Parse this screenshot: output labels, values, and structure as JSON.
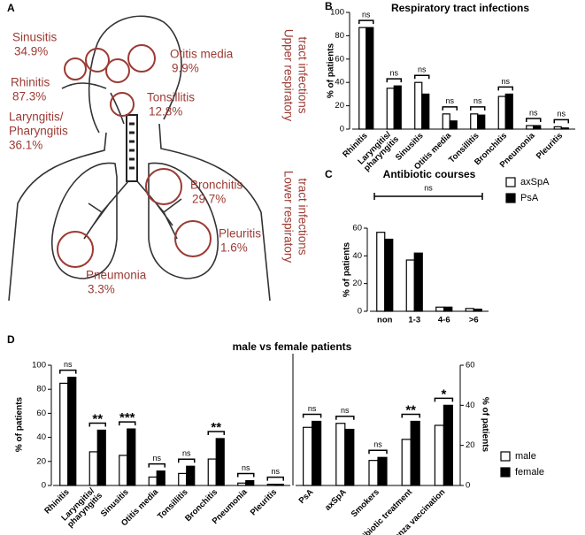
{
  "illustration": {
    "panel_label": "A",
    "labels": [
      {
        "lines": [
          "Sinusitis"
        ],
        "value": "34.9%"
      },
      {
        "lines": [
          "Otitis media"
        ],
        "value": "9.9%"
      },
      {
        "lines": [
          "Rhinitis"
        ],
        "value": "87.3%"
      },
      {
        "lines": [
          "Tonsillitis"
        ],
        "value": "12.8%"
      },
      {
        "lines": [
          "Laryngitis/",
          "Pharyngitis"
        ],
        "value": "36.1%"
      },
      {
        "lines": [
          "Bronchitis"
        ],
        "value": "29.7%"
      },
      {
        "lines": [
          "Pleuritis"
        ],
        "value": "1.6%"
      },
      {
        "lines": [
          "Pneumonia"
        ],
        "value": "3.3%"
      }
    ],
    "groups": [
      {
        "lines": [
          "Upper respiratory",
          "tract infections"
        ]
      },
      {
        "lines": [
          "Lower respiratory",
          "tract infections"
        ]
      }
    ]
  },
  "chart_data": [
    {
      "type": "bar",
      "panel_label": "B",
      "title": "Respiratory tract infections",
      "ylabel": "% of patients",
      "categories": [
        "Rhinitis",
        "Laryngitis/ pharyngitis",
        "Sinusitis",
        "Otitis media",
        "Tonsillitis",
        "Bronchitis",
        "Pneumonia",
        "Pleuritis"
      ],
      "series": [
        {
          "name": "axSpA",
          "color": "#ffffff",
          "values": [
            87,
            35,
            40,
            13,
            13,
            28,
            3,
            2
          ]
        },
        {
          "name": "PsA",
          "color": "#000000",
          "values": [
            87,
            37,
            30,
            7,
            12,
            30,
            3,
            1
          ]
        }
      ],
      "annotations": [
        "ns",
        "ns",
        "ns",
        "ns",
        "ns",
        "ns",
        "ns",
        "ns"
      ],
      "ylim": [
        0,
        100
      ],
      "yticks": [
        0,
        20,
        40,
        60,
        80,
        100
      ]
    },
    {
      "type": "bar",
      "panel_label": "C",
      "title": "Antibiotic courses",
      "ylabel": "% of patients",
      "categories": [
        "non",
        "1-3",
        "4-6",
        ">6"
      ],
      "series": [
        {
          "name": "axSpA",
          "color": "#ffffff",
          "values": [
            57,
            37,
            3,
            2
          ]
        },
        {
          "name": "PsA",
          "color": "#000000",
          "values": [
            52,
            42,
            3,
            1.5
          ]
        }
      ],
      "annotation": "ns",
      "legend": "right",
      "ylim": [
        0,
        60
      ],
      "yticks": [
        0,
        20,
        40,
        60
      ]
    },
    {
      "type": "bar",
      "panel_label": "D",
      "title": "male vs female patients",
      "ylabel": "% of patients",
      "y2label": "% of patients",
      "ylim": [
        0,
        100
      ],
      "yticks": [
        0,
        20,
        40,
        60,
        80,
        100
      ],
      "y2lim": [
        0,
        60
      ],
      "y2ticks": [
        0,
        20,
        40,
        60
      ],
      "legend": "right",
      "left": {
        "categories": [
          "Rhinitis",
          "Laryngitis/ pharyngitis",
          "Sinusitis",
          "Otitis media",
          "Tonsillitis",
          "Bronchitis",
          "Pneumonia",
          "Pleuritis"
        ],
        "series": [
          {
            "name": "male",
            "color": "#ffffff",
            "values": [
              85,
              28,
              25,
              7,
              10,
              22,
              2,
              1
            ]
          },
          {
            "name": "female",
            "color": "#000000",
            "values": [
              90,
              46,
              47,
              12,
              16,
              39,
              4,
              1
            ]
          }
        ],
        "annotations": [
          "ns",
          "**",
          "***",
          "ns",
          "ns",
          "**",
          "ns",
          "ns"
        ]
      },
      "right": {
        "categories": [
          "PsA",
          "axSpA",
          "Smokers",
          "Antibiotic treatment",
          "Influenza vaccination"
        ],
        "series": [
          {
            "axis": "y2",
            "values": [
              29,
              31,
              12.5,
              23,
              30
            ]
          },
          {
            "axis": "y2",
            "values": [
              32,
              28,
              14,
              32,
              40
            ]
          }
        ],
        "annotations": [
          "ns",
          "ns",
          "ns",
          "**",
          "*"
        ]
      }
    }
  ]
}
